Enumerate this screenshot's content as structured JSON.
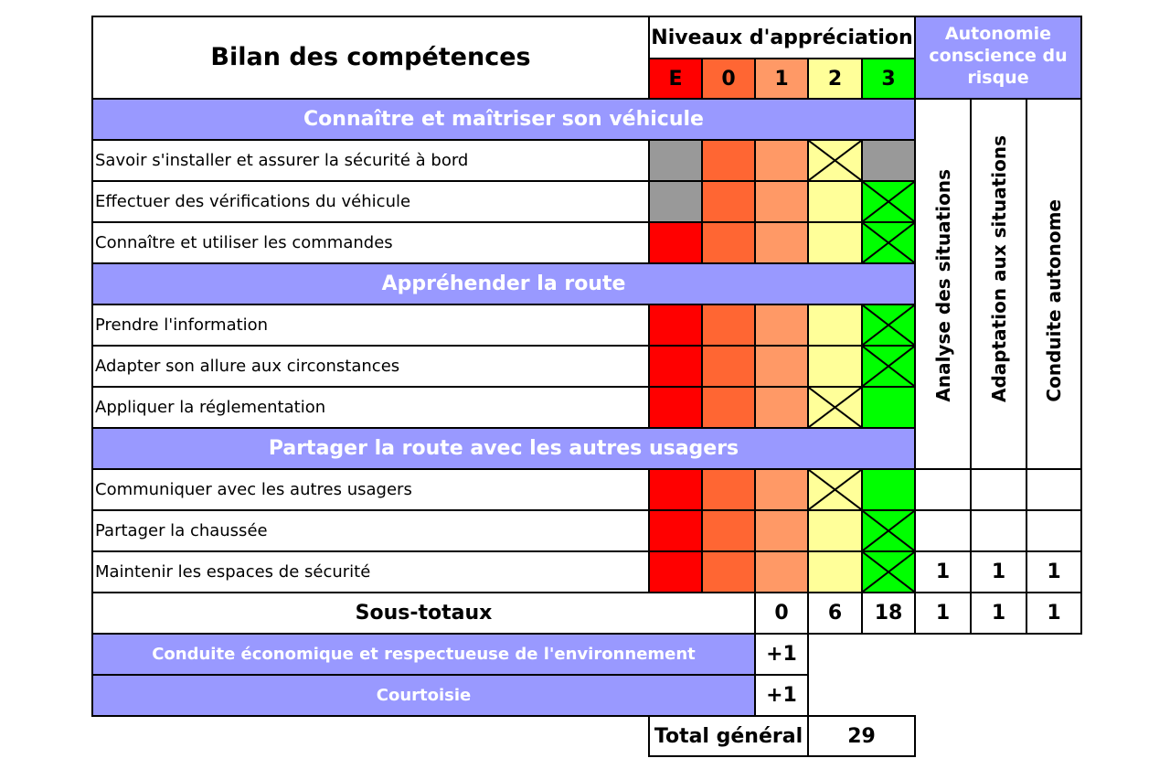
{
  "header": {
    "title": "Bilan des compétences",
    "niveaux_title": "Niveaux d'appréciation",
    "autonomie_title": "Autonomie conscience du risque",
    "levels": [
      {
        "label": "E",
        "color": "#ff0000"
      },
      {
        "label": "0",
        "color": "#ff6633"
      },
      {
        "label": "1",
        "color": "#ff9966"
      },
      {
        "label": "2",
        "color": "#ffff99"
      },
      {
        "label": "3",
        "color": "#00ff00"
      }
    ]
  },
  "autonomy_columns": [
    "Analyse des situations",
    "Adaptation aux situations",
    "Conduite autonome"
  ],
  "sections": [
    {
      "title": "Connaître et maîtriser son véhicule",
      "rows": [
        {
          "label": "Savoir s'installer et assurer la sécurité à bord",
          "checked_level": "2",
          "greyed_levels": [
            "E",
            "3"
          ]
        },
        {
          "label": "Effectuer des vérifications du véhicule",
          "checked_level": "3",
          "greyed_levels": [
            "E"
          ]
        },
        {
          "label": "Connaître et utiliser les commandes",
          "checked_level": "3",
          "greyed_levels": []
        }
      ]
    },
    {
      "title": "Appréhender la route",
      "rows": [
        {
          "label": "Prendre l'information",
          "checked_level": "3",
          "greyed_levels": []
        },
        {
          "label": "Adapter son allure aux circonstances",
          "checked_level": "3",
          "greyed_levels": []
        },
        {
          "label": "Appliquer la réglementation",
          "checked_level": "2",
          "greyed_levels": []
        }
      ]
    },
    {
      "title": "Partager la route avec les autres usagers",
      "rows": [
        {
          "label": "Communiquer avec les autres usagers",
          "checked_level": "2",
          "greyed_levels": [],
          "autonomy": [
            "",
            "",
            ""
          ]
        },
        {
          "label": "Partager la chaussée",
          "checked_level": "3",
          "greyed_levels": [],
          "autonomy": [
            "",
            "",
            ""
          ]
        },
        {
          "label": "Maintenir les espaces de sécurité",
          "checked_level": "3",
          "greyed_levels": [],
          "autonomy": [
            "1",
            "1",
            "1"
          ]
        }
      ]
    }
  ],
  "sous_totaux": {
    "label": "Sous-totaux",
    "level_1": "0",
    "level_2": "6",
    "level_3": "18",
    "autonomy": [
      "1",
      "1",
      "1"
    ]
  },
  "bonus": [
    {
      "label": "Conduite économique et respectueuse de l'environnement",
      "value": "+1"
    },
    {
      "label": "Courtoisie",
      "value": "+1"
    }
  ],
  "total": {
    "label": "Total général",
    "value": "29"
  },
  "colors": {
    "section_bg": "#9999ff",
    "grey": "#999999",
    "border": "#000000"
  }
}
